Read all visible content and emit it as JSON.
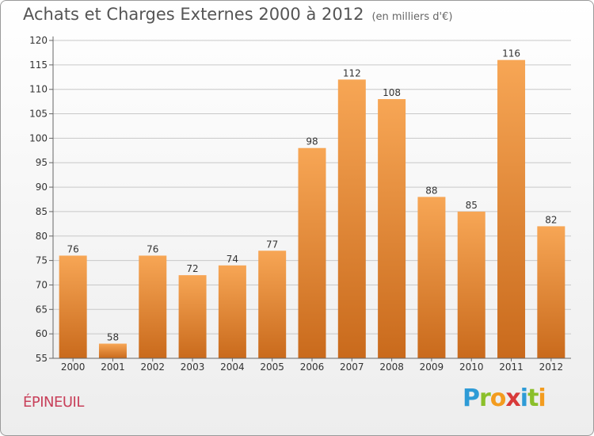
{
  "header": {
    "title": "Achats et Charges Externes 2000 à 2012",
    "unit": "(en milliers d'€)"
  },
  "footer": {
    "city": "ÉPINEUIL",
    "brand_letters": [
      "P",
      "r",
      "o",
      "x",
      "i",
      "t",
      "i"
    ],
    "brand_colors": [
      "#2e9bd6",
      "#8bbf2a",
      "#f39c1f",
      "#d83a3a",
      "#2e9bd6",
      "#8bbf2a",
      "#f39c1f"
    ]
  },
  "chart_data": {
    "type": "bar",
    "categories": [
      "2000",
      "2001",
      "2002",
      "2003",
      "2004",
      "2005",
      "2006",
      "2007",
      "2008",
      "2009",
      "2010",
      "2011",
      "2012"
    ],
    "values": [
      76,
      58,
      76,
      72,
      74,
      77,
      98,
      112,
      108,
      88,
      85,
      116,
      82
    ],
    "title": "Achats et Charges Externes 2000 à 2012",
    "xlabel": "",
    "ylabel": "",
    "ylim": [
      55,
      120
    ],
    "yticks": [
      55,
      60,
      65,
      70,
      75,
      80,
      85,
      90,
      95,
      100,
      105,
      110,
      115,
      120
    ],
    "grid": true,
    "bar_color_top": "#f7a655",
    "bar_color_bottom": "#c96a1c"
  }
}
